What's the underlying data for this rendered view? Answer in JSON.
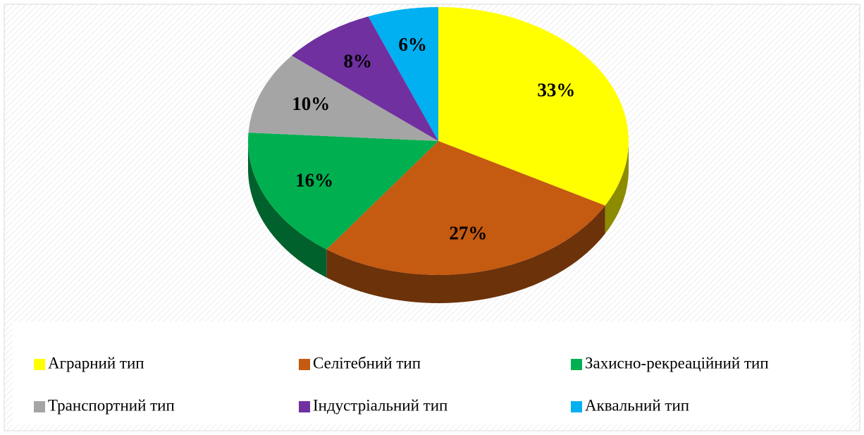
{
  "chart_data": {
    "type": "pie",
    "categories": [
      "Аграрний тип",
      "Селітебний тип",
      "Захисно-рекреаційний тип",
      "Транспортний тип",
      "Індустріальний тип",
      "Аквальний тип"
    ],
    "values": [
      33,
      27,
      16,
      10,
      8,
      6
    ],
    "value_labels": [
      "33%",
      "27%",
      "16%",
      "10%",
      "8%",
      "6%"
    ],
    "colors": [
      "#ffff00",
      "#c55a11",
      "#00b050",
      "#a5a5a5",
      "#7030a0",
      "#00b0f0"
    ]
  }
}
